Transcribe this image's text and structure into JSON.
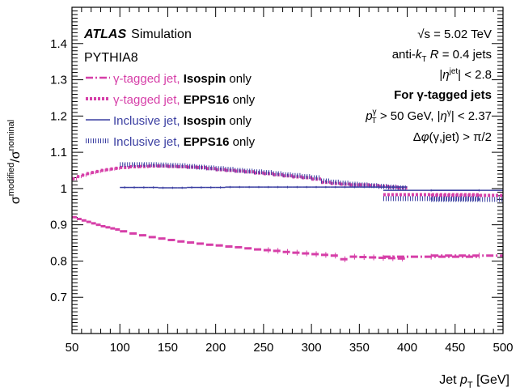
{
  "chart_data": {
    "type": "line",
    "xlabel": "Jet p_T [GeV]",
    "xlabel_main": "Jet ",
    "xlabel_var": "p",
    "xlabel_sub": "T",
    "xlabel_unit": " [GeV]",
    "ylabel_base1": "σ",
    "ylabel_sup1": "modified",
    "ylabel_sep": "/σ",
    "ylabel_sup2": "nominal",
    "xlim": [
      50,
      500
    ],
    "ylim": [
      0.6,
      1.5
    ],
    "xticks": [
      50,
      100,
      150,
      200,
      250,
      300,
      350,
      400,
      450,
      500
    ],
    "yticks": [
      0.7,
      0.8,
      0.9,
      1,
      1.1,
      1.2,
      1.3,
      1.4
    ],
    "xtick_labels": [
      "50",
      "100",
      "150",
      "200",
      "250",
      "300",
      "350",
      "400",
      "450",
      "500"
    ],
    "ytick_labels": [
      "0.7",
      "0.8",
      "0.9",
      "1",
      "1.1",
      "1.2",
      "1.3",
      "1.4"
    ],
    "atlas_label": "ATLAS",
    "atlas_sub": "Simulation",
    "generator": "PYTHIA8",
    "annotations": {
      "line1": "√s = 5.02 TeV",
      "line2": "anti-k_T R = 0.4 jets",
      "line3": "|η^jet| < 2.8",
      "line4": "For γ-tagged jets",
      "line5": "p_T^γ > 50 GeV, |η^γ| < 2.37",
      "line6": "Δφ(γ,jet) > π/2"
    },
    "legend_position": "top-left",
    "series": [
      {
        "name": "γ-tagged jet, Isospin only",
        "name_a": "γ-tagged jet, ",
        "name_b": "Isospin",
        "name_c": " only",
        "color": "#d63fa8",
        "style": "dashdot",
        "x": [
          52.5,
          57.5,
          62.5,
          67.5,
          72.5,
          77.5,
          82.5,
          87.5,
          92.5,
          97.5,
          105,
          115,
          125,
          135,
          145,
          155,
          165,
          175,
          185,
          195,
          205,
          215,
          225,
          235,
          245,
          255,
          265,
          275,
          285,
          295,
          305,
          315,
          325,
          335,
          345,
          355,
          365,
          375,
          385,
          395,
          425,
          475
        ],
        "values": [
          0.921,
          0.916,
          0.912,
          0.908,
          0.904,
          0.9,
          0.896,
          0.893,
          0.89,
          0.887,
          0.882,
          0.876,
          0.871,
          0.866,
          0.862,
          0.858,
          0.854,
          0.851,
          0.848,
          0.845,
          0.843,
          0.84,
          0.838,
          0.835,
          0.832,
          0.83,
          0.828,
          0.825,
          0.823,
          0.821,
          0.819,
          0.817,
          0.815,
          0.805,
          0.812,
          0.811,
          0.81,
          0.809,
          0.808,
          0.807,
          0.812,
          0.815
        ]
      },
      {
        "name": "γ-tagged jet, EPPS16 only",
        "name_a": "γ-tagged jet, ",
        "name_b": "EPPS16",
        "name_c": " only",
        "color": "#d63fa8",
        "style": "dotted",
        "x": [
          52.5,
          57.5,
          62.5,
          67.5,
          72.5,
          77.5,
          82.5,
          87.5,
          92.5,
          97.5,
          105,
          115,
          125,
          135,
          145,
          155,
          165,
          175,
          185,
          195,
          205,
          215,
          225,
          235,
          245,
          255,
          265,
          275,
          285,
          295,
          305,
          315,
          325,
          335,
          345,
          355,
          365,
          375,
          385,
          395,
          425,
          475
        ],
        "values": [
          1.027,
          1.033,
          1.037,
          1.041,
          1.044,
          1.047,
          1.05,
          1.052,
          1.054,
          1.056,
          1.058,
          1.06,
          1.061,
          1.062,
          1.062,
          1.061,
          1.06,
          1.059,
          1.058,
          1.055,
          1.052,
          1.05,
          1.048,
          1.046,
          1.043,
          1.041,
          1.038,
          1.035,
          1.032,
          1.03,
          1.026,
          1.017,
          1.014,
          1.012,
          1.01,
          1.01,
          1.008,
          1.006,
          1.004,
          1.002,
          0.983,
          0.981
        ]
      },
      {
        "name": "Inclusive jet, Isospin only",
        "name_a": "Inclusive jet, ",
        "name_b": "Isospin",
        "name_c": " only",
        "color": "#3a3ea1",
        "style": "solid",
        "x": [
          105,
          115,
          125,
          135,
          145,
          155,
          165,
          175,
          185,
          195,
          205,
          215,
          225,
          235,
          245,
          255,
          265,
          275,
          285,
          295,
          305,
          315,
          325,
          335,
          345,
          355,
          365,
          375,
          385,
          395,
          425,
          475
        ],
        "values": [
          1.003,
          1.003,
          1.003,
          1.003,
          1.002,
          1.002,
          1.002,
          1.003,
          1.003,
          1.003,
          1.003,
          1.004,
          1.004,
          1.004,
          1.004,
          1.004,
          1.004,
          1.004,
          1.004,
          1.004,
          1.004,
          1.004,
          1.004,
          1.004,
          1.004,
          1.004,
          1.004,
          1.004,
          1.004,
          1.004,
          0.995,
          0.995
        ]
      },
      {
        "name": "Inclusive jet, EPPS16 only",
        "name_a": "Inclusive jet, ",
        "name_b": "EPPS16",
        "name_c": " only",
        "color": "#3a3ea1",
        "style": "hatched",
        "x": [
          105,
          115,
          125,
          135,
          145,
          155,
          165,
          175,
          185,
          195,
          205,
          215,
          225,
          235,
          245,
          255,
          265,
          275,
          285,
          295,
          305,
          315,
          325,
          335,
          345,
          355,
          365,
          375,
          385,
          395,
          425,
          475
        ],
        "values": [
          1.066,
          1.066,
          1.066,
          1.066,
          1.065,
          1.064,
          1.063,
          1.061,
          1.059,
          1.057,
          1.055,
          1.053,
          1.05,
          1.048,
          1.046,
          1.044,
          1.041,
          1.038,
          1.036,
          1.033,
          1.03,
          1.021,
          1.018,
          1.015,
          1.012,
          1.01,
          1.008,
          1.006,
          1.004,
          1.002,
          0.972,
          0.97
        ]
      }
    ]
  }
}
